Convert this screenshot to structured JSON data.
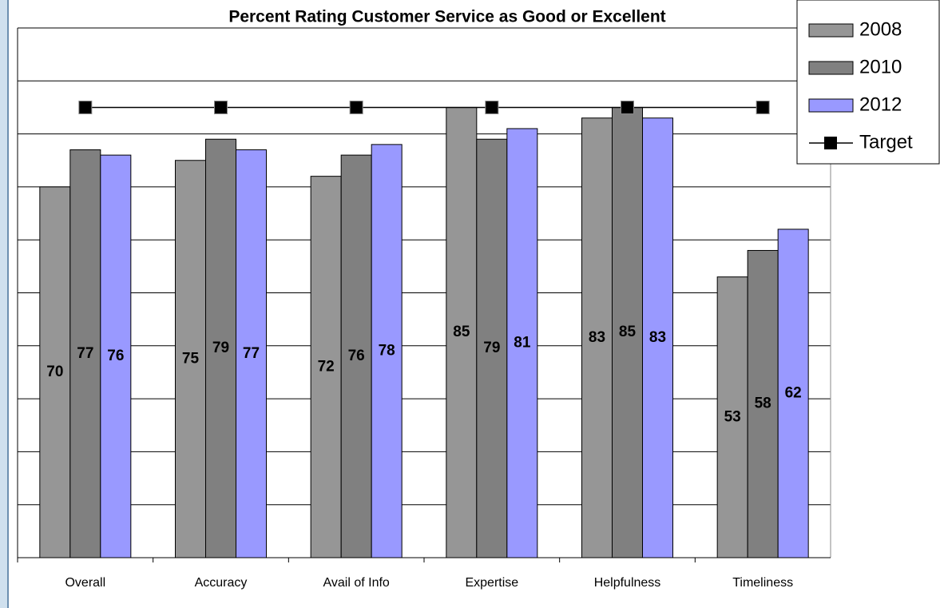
{
  "chart_data": {
    "type": "bar",
    "title": "Percent Rating Customer Service as Good or Excellent",
    "categories": [
      "Overall",
      "Accuracy",
      "Avail of Info",
      "Expertise",
      "Helpfulness",
      "Timeliness"
    ],
    "series": [
      {
        "name": "2008",
        "color": "#969696",
        "values": [
          70,
          75,
          72,
          85,
          83,
          53
        ]
      },
      {
        "name": "2010",
        "color": "#808080",
        "values": [
          77,
          79,
          76,
          79,
          85,
          58
        ]
      },
      {
        "name": "2012",
        "color": "#9999ff",
        "values": [
          76,
          77,
          78,
          81,
          83,
          62
        ]
      },
      {
        "name": "Target",
        "type": "line",
        "color": "#000000",
        "values": [
          85,
          85,
          85,
          85,
          85,
          85
        ]
      }
    ],
    "ylim": [
      0,
      100
    ],
    "yticks": [
      0,
      10,
      20,
      30,
      40,
      50,
      60,
      70,
      80,
      90,
      100
    ],
    "grid": true,
    "legend": "upper right"
  }
}
